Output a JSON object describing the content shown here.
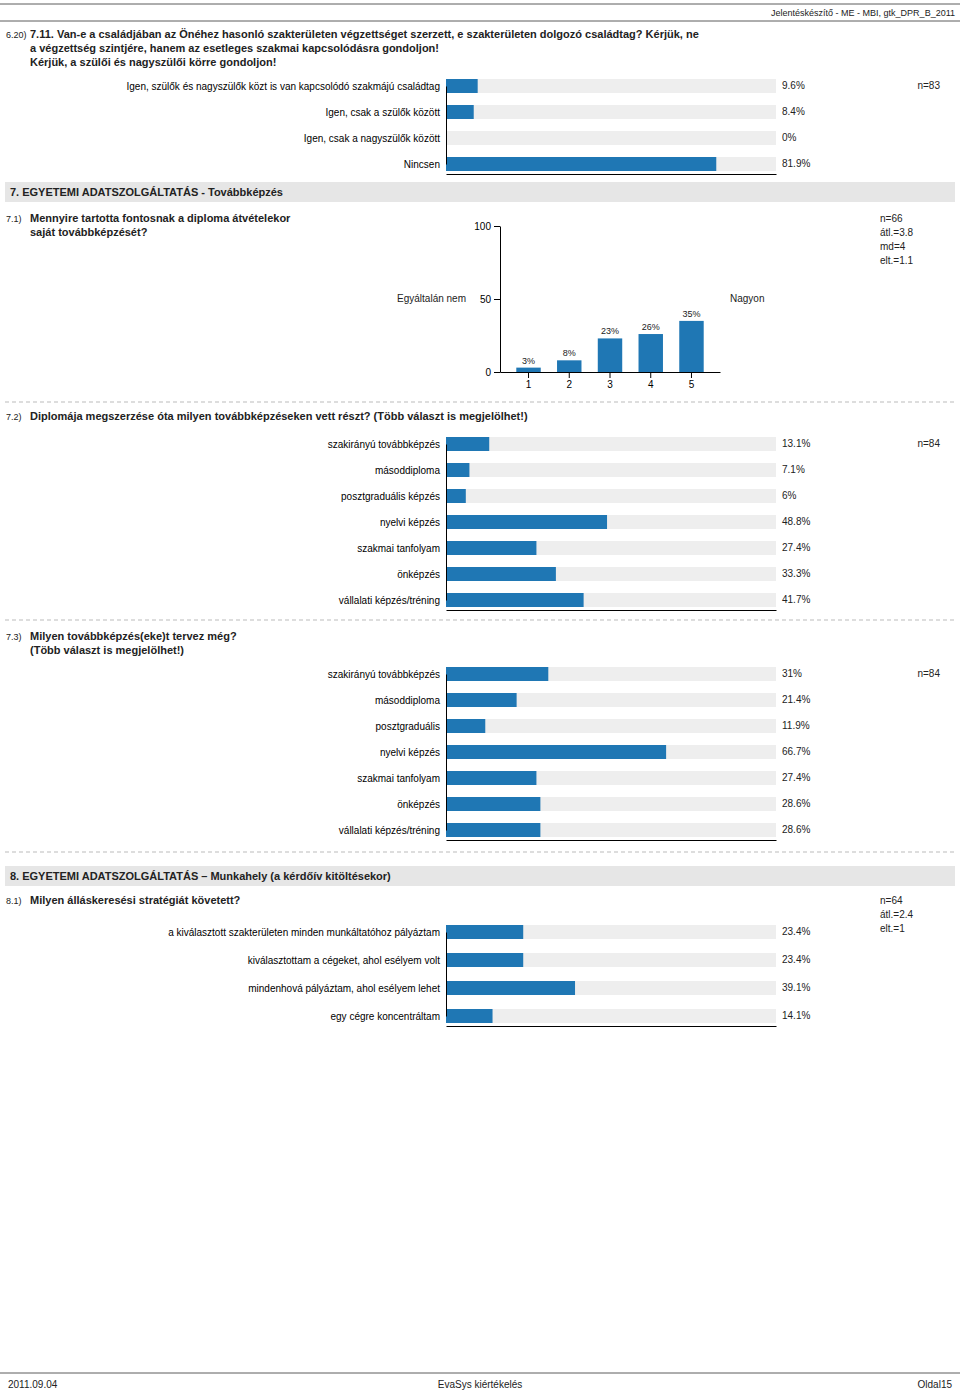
{
  "title": "Jelentéskészítő - ME - MBI, gtk_DPR_B_2011",
  "annotations": [
    "7. EGYETEMI ADATSZOLGÁLTATÁS - Továbbképzés",
    "8. EGYETEMI ADATSZOLGÁLTATÁS – Munkahely (a kérdőív kitöltésekor)",
    "2011.09.04",
    "EvaSys kiértékelés",
    "Oldal15"
  ],
  "chart_data": [
    {
      "type": "bar",
      "orientation": "horizontal",
      "title": [
        "7.11. Van-e a családjában az Önéhez hasonló szakterületen végzettséget szerzett, e szakterületen dolgozó családtag? Kérjük, ne",
        "a végzettség szintjére, hanem az esetleges szakmai kapcsolódásra gondoljon!",
        "Kérjük, a szülői és nagyszülői körre gondoljon!"
      ],
      "annotations": [
        "6.20)",
        "n=83"
      ],
      "categories": [
        "Igen, szülők és nagyszülők közt is van kapcsolódó szakmájú családtag",
        "Igen, csak a szülők között",
        "Igen, csak a nagyszülők között",
        "Nincsen"
      ],
      "values": [
        9.6,
        8.4,
        0.0,
        81.9
      ],
      "value_labels": [
        "9.6%",
        "8.4%",
        "0%",
        "81.9%"
      ],
      "xlim": [
        0,
        100
      ],
      "tick_labels": false,
      "data_labels": true
    },
    {
      "type": "bar",
      "title": [
        "Mennyire tartotta fontosnak a diploma átvételekor",
        "saját továbbképzését?"
      ],
      "annotations": [
        "7.1)",
        "Egyáltalán nem",
        "Nagyon",
        "n=66",
        "átl.=3.8",
        "md=4",
        "elt.=1.1"
      ],
      "categories": [
        "1",
        "2",
        "3",
        "4",
        "5"
      ],
      "values": [
        3,
        8,
        23,
        26,
        35
      ],
      "value_labels": [
        "3%",
        "8%",
        "23%",
        "26%",
        "35%"
      ],
      "ylim": [
        0,
        100
      ],
      "yticks": [
        0,
        50,
        100
      ],
      "data_labels": true
    },
    {
      "type": "bar",
      "orientation": "horizontal",
      "title": [
        "Diplomája megszerzése óta milyen továbbképzéseken vett részt? (Több választ is megjelölhet!)"
      ],
      "annotations": [
        "7.2)",
        "n=84"
      ],
      "categories": [
        "szakirányú továbbképzés",
        "másoddiploma",
        "posztgraduális képzés",
        "nyelvi képzés",
        "szakmai tanfolyam",
        "önképzés",
        "vállalati képzés/tréning"
      ],
      "values": [
        13.1,
        7.1,
        6.0,
        48.8,
        27.4,
        33.3,
        41.7
      ],
      "value_labels": [
        "13.1%",
        "7.1%",
        "6%",
        "48.8%",
        "27.4%",
        "33.3%",
        "41.7%"
      ],
      "xlim": [
        0,
        100
      ],
      "tick_labels": false,
      "data_labels": true
    },
    {
      "type": "bar",
      "orientation": "horizontal",
      "title": [
        "Milyen továbbképzés(eke)t tervez még?",
        "(Több választ is megjelölhet!)"
      ],
      "annotations": [
        "7.3)",
        "n=84"
      ],
      "categories": [
        "szakirányú továbbképzés",
        "másoddiploma",
        "posztgraduális",
        "nyelvi képzés",
        "szakmai tanfolyam",
        "önképzés",
        "vállalati képzés/tréning"
      ],
      "values": [
        31.0,
        21.4,
        11.9,
        66.7,
        27.4,
        28.6,
        28.6
      ],
      "value_labels": [
        "31%",
        "21.4%",
        "11.9%",
        "66.7%",
        "27.4%",
        "28.6%",
        "28.6%"
      ],
      "xlim": [
        0,
        100
      ],
      "tick_labels": false,
      "data_labels": true
    },
    {
      "type": "bar",
      "orientation": "horizontal",
      "title": [
        "Milyen álláskeresési stratégiát követett?"
      ],
      "annotations": [
        "8.1)",
        "n=64",
        "átl.=2.4",
        "elt.=1"
      ],
      "categories": [
        "a kiválasztott szakterületen minden munkáltatóhoz pályáztam",
        "kiválasztottam a cégeket, ahol esélyem volt",
        "mindenhová pályáztam, ahol esélyem lehet",
        "egy cégre koncentráltam"
      ],
      "values": [
        23.4,
        23.4,
        39.1,
        14.1
      ],
      "value_labels": [
        "23.4%",
        "23.4%",
        "39.1%",
        "14.1%"
      ],
      "xlim": [
        0,
        100
      ],
      "tick_labels": false,
      "data_labels": true
    }
  ]
}
